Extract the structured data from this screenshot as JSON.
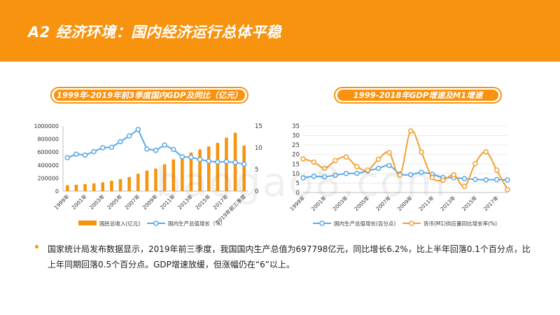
{
  "header": {
    "title": "A2 经济环境：国内经济运行总体平稳"
  },
  "left_chart_title": "1999年-2019年前3季度国内GDP及同比（亿元）",
  "right_chart_title": "1999-2018年GDP增速及M1增速",
  "watermark": "baogao8.com",
  "bullet": "国家统计局发布数据显示，2019年前三季度，我国国内生产总值为697798亿元，同比增长6.2%，比上半年回落0.1个百分点，比上年同期回落0.5个百分点。GDP增速放缓，但涨幅仍在“6”以上。",
  "colors": {
    "accent": "#f7930f",
    "bar": "#f7930f",
    "gdp_line": "#5aa9e6",
    "m1_line": "#f2a033",
    "text": "#1a1a1a"
  },
  "chart_data": [
    {
      "type": "bar+line",
      "title": "1999年-2019年前3季度国内GDP及同比（亿元）",
      "categories": [
        "1999年",
        "2000年",
        "2001年",
        "2002年",
        "2003年",
        "2004年",
        "2005年",
        "2006年",
        "2007年",
        "2008年",
        "2009年",
        "2010年",
        "2011年",
        "2012年",
        "2013年",
        "2014年",
        "2015年",
        "2016年",
        "2017年",
        "2018年",
        "2019年前三季度"
      ],
      "tick_labels": [
        "1999年",
        "2001年",
        "2003年",
        "2005年",
        "2007年",
        "2009年",
        "2011年",
        "2013年",
        "2015年",
        "2017年",
        "2019年前三季度"
      ],
      "series": [
        {
          "name": "国民总收入(亿元)",
          "type": "bar",
          "axis": "left",
          "values": [
            89000,
            98000,
            108000,
            119000,
            135000,
            160000,
            185000,
            216000,
            266000,
            316000,
            346000,
            412000,
            487000,
            538000,
            592000,
            641000,
            686000,
            741000,
            820000,
            896000,
            697798
          ]
        },
        {
          "name": "国内生产总值增长（%）",
          "type": "line",
          "axis": "right",
          "values": [
            7.7,
            8.5,
            8.3,
            9.1,
            10.0,
            10.1,
            11.4,
            12.7,
            14.2,
            9.7,
            9.4,
            10.6,
            9.6,
            7.9,
            7.8,
            7.3,
            6.9,
            6.7,
            6.8,
            6.6,
            6.2
          ]
        }
      ],
      "ylim_left": [
        0,
        1000000
      ],
      "yticks_left": [
        "1000000",
        "800000",
        "600000",
        "400000",
        "200000",
        "0"
      ],
      "ylim_right": [
        0,
        15
      ],
      "yticks_right": [
        "15",
        "10",
        "5",
        "0"
      ],
      "legend": [
        "国民总收入(亿元)",
        "国内生产总值增长（%）"
      ]
    },
    {
      "type": "line",
      "title": "1999-2018年GDP增速及M1增速",
      "categories": [
        "1999年",
        "2000年",
        "2001年",
        "2002年",
        "2003年",
        "2004年",
        "2005年",
        "2006年",
        "2007年",
        "2008年",
        "2009年",
        "2010年",
        "2011年",
        "2012年",
        "2013年",
        "2014年",
        "2015年",
        "2016年",
        "2017年",
        "2018年"
      ],
      "tick_labels": [
        "1999年",
        "2001年",
        "2003年",
        "2005年",
        "2007年",
        "2009年",
        "2011年",
        "2013年",
        "2015年",
        "2017年"
      ],
      "series": [
        {
          "name": "国内生产总值增长(百分点)",
          "values": [
            7.7,
            8.5,
            8.3,
            9.1,
            10.0,
            10.1,
            11.4,
            12.7,
            14.2,
            9.7,
            9.4,
            10.6,
            9.6,
            7.9,
            7.8,
            7.3,
            6.9,
            6.7,
            6.8,
            6.6
          ]
        },
        {
          "name": "货币(M1)供应量同比增长率(%)",
          "values": [
            17.7,
            16.0,
            12.7,
            16.8,
            18.7,
            13.6,
            11.8,
            17.5,
            21.0,
            9.1,
            32.4,
            21.2,
            7.9,
            6.5,
            9.3,
            3.2,
            15.2,
            21.4,
            11.8,
            1.5
          ]
        }
      ],
      "ylim": [
        0,
        35
      ],
      "yticks": [
        "35",
        "30",
        "25",
        "20",
        "15",
        "10",
        "5",
        "0"
      ],
      "legend": [
        "国内生产总值增长(百分点)",
        "货币(M1)供应量同比增长率(%)"
      ]
    }
  ]
}
